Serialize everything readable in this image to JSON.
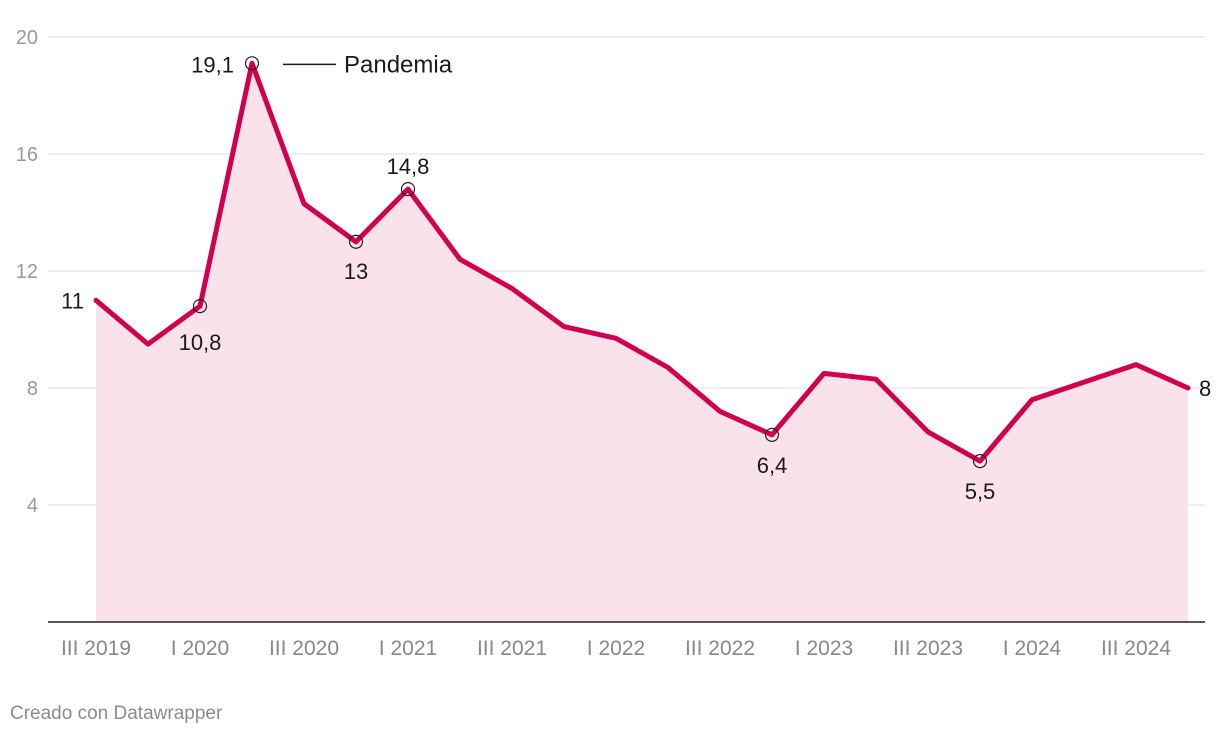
{
  "chart_data": {
    "type": "area",
    "title": "",
    "xlabel": "",
    "ylabel": "",
    "ylim": [
      0,
      20
    ],
    "yticks": [
      4,
      8,
      12,
      16,
      20
    ],
    "grid": true,
    "x": [
      "III 2019",
      "IV 2019",
      "I 2020",
      "II 2020",
      "III 2020",
      "IV 2020",
      "I 2021",
      "II 2021",
      "III 2021",
      "IV 2021",
      "I 2022",
      "II 2022",
      "III 2022",
      "IV 2022",
      "I 2023",
      "II 2023",
      "III 2023",
      "IV 2023",
      "I 2024",
      "II 2024",
      "III 2024",
      "IV 2024"
    ],
    "xtick_labels": [
      {
        "index": 0,
        "label": "III 2019"
      },
      {
        "index": 2,
        "label": "I 2020"
      },
      {
        "index": 4,
        "label": "III 2020"
      },
      {
        "index": 6,
        "label": "I 2021"
      },
      {
        "index": 8,
        "label": "III 2021"
      },
      {
        "index": 10,
        "label": "I 2022"
      },
      {
        "index": 12,
        "label": "III 2022"
      },
      {
        "index": 14,
        "label": "I 2023"
      },
      {
        "index": 16,
        "label": "III 2023"
      },
      {
        "index": 18,
        "label": "I 2024"
      },
      {
        "index": 20,
        "label": "III 2024"
      }
    ],
    "values": [
      11,
      9.5,
      10.8,
      19.1,
      14.3,
      13,
      14.8,
      12.4,
      11.4,
      10.1,
      9.7,
      8.7,
      7.2,
      6.4,
      8.5,
      8.3,
      6.5,
      5.5,
      7.6,
      8.2,
      8.8,
      8
    ],
    "data_labels": [
      {
        "index": 0,
        "text": "11",
        "marker": false
      },
      {
        "index": 2,
        "text": "10,8",
        "marker": true
      },
      {
        "index": 3,
        "text": "19,1",
        "marker": true
      },
      {
        "index": 5,
        "text": "13",
        "marker": true
      },
      {
        "index": 6,
        "text": "14,8",
        "marker": true
      },
      {
        "index": 13,
        "text": "6,4",
        "marker": true
      },
      {
        "index": 17,
        "text": "5,5",
        "marker": true
      },
      {
        "index": 21,
        "text": "8",
        "marker": false
      }
    ],
    "annotation": {
      "text": "Pandemia",
      "index": 3
    },
    "colors": {
      "line": "#d1004f",
      "area": "#f9e2ea",
      "grid": "#dddddd",
      "axis": "#222222"
    }
  },
  "credit": "Creado con Datawrapper"
}
